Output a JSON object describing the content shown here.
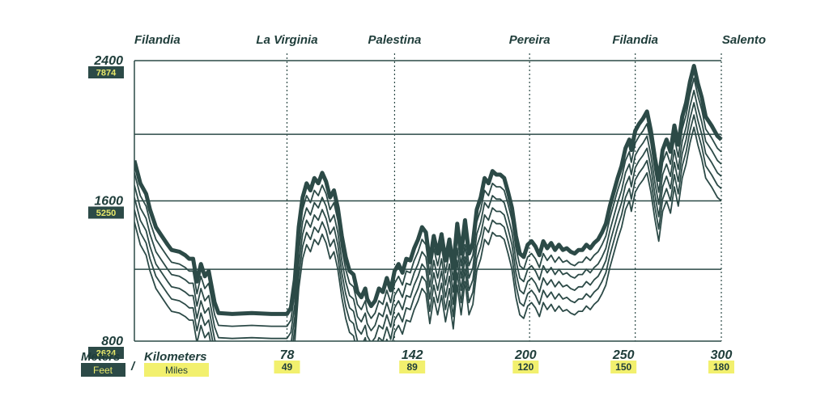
{
  "colors": {
    "ink": "#2c4a47",
    "dark_box": "#2c4a47",
    "yellow_box": "#f2f06e",
    "yellow_text": "#e8e86a",
    "grid": "#2c4a47"
  },
  "units": {
    "meters": "Meters",
    "feet": "Feet",
    "separator": "/",
    "kilometers": "Kilometers",
    "miles": "Miles"
  },
  "chart_data": {
    "type": "line",
    "title": "",
    "xlabel": "Kilometers",
    "ylabel": "Meters",
    "xlim": [
      0,
      300
    ],
    "ylim": [
      800,
      2400
    ],
    "grid": true,
    "y_ticks": [
      {
        "m": "2400",
        "ft": "7874",
        "value": 2400
      },
      {
        "m": "1600",
        "ft": "5250",
        "value": 1600
      },
      {
        "m": "800",
        "ft": "2624",
        "value": 800
      }
    ],
    "extra_gridlines": [
      1980,
      1210
    ],
    "x_ticks": [
      {
        "km": "78",
        "mi": "49",
        "value": 78
      },
      {
        "km": "142",
        "mi": "89",
        "value": 142
      },
      {
        "km": "200",
        "mi": "120",
        "value": 200
      },
      {
        "km": "250",
        "mi": "150",
        "value": 250
      },
      {
        "km": "300",
        "mi": "180",
        "value": 300
      }
    ],
    "towns": [
      {
        "name": "Filandia",
        "km": 0
      },
      {
        "name": "La Virginia",
        "km": 78
      },
      {
        "name": "Palestina",
        "km": 133
      },
      {
        "name": "Pereira",
        "km": 202
      },
      {
        "name": "Filandia",
        "km": 256
      },
      {
        "name": "Salento",
        "km": 300
      }
    ],
    "layers": 6,
    "layer_offset_m": 70,
    "profile": [
      [
        0,
        1830
      ],
      [
        3,
        1700
      ],
      [
        6,
        1640
      ],
      [
        8,
        1550
      ],
      [
        11,
        1450
      ],
      [
        14,
        1400
      ],
      [
        17,
        1350
      ],
      [
        19,
        1320
      ],
      [
        23,
        1310
      ],
      [
        26,
        1290
      ],
      [
        28,
        1270
      ],
      [
        30,
        1270
      ],
      [
        32,
        1140
      ],
      [
        34,
        1240
      ],
      [
        36,
        1170
      ],
      [
        38,
        1200
      ],
      [
        41,
        1020
      ],
      [
        43,
        960
      ],
      [
        50,
        955
      ],
      [
        60,
        960
      ],
      [
        70,
        955
      ],
      [
        78,
        955
      ],
      [
        80,
        990
      ],
      [
        82,
        1150
      ],
      [
        84,
        1450
      ],
      [
        86,
        1620
      ],
      [
        88,
        1700
      ],
      [
        90,
        1660
      ],
      [
        92,
        1730
      ],
      [
        94,
        1700
      ],
      [
        96,
        1760
      ],
      [
        98,
        1710
      ],
      [
        100,
        1620
      ],
      [
        102,
        1660
      ],
      [
        104,
        1560
      ],
      [
        106,
        1400
      ],
      [
        108,
        1280
      ],
      [
        110,
        1200
      ],
      [
        112,
        1180
      ],
      [
        114,
        1080
      ],
      [
        116,
        1050
      ],
      [
        118,
        1100
      ],
      [
        119,
        1040
      ],
      [
        121,
        1000
      ],
      [
        123,
        1030
      ],
      [
        125,
        1100
      ],
      [
        127,
        1080
      ],
      [
        129,
        1160
      ],
      [
        131,
        1090
      ],
      [
        133,
        1200
      ],
      [
        135,
        1240
      ],
      [
        137,
        1190
      ],
      [
        139,
        1270
      ],
      [
        141,
        1260
      ],
      [
        143,
        1330
      ],
      [
        145,
        1380
      ],
      [
        147,
        1450
      ],
      [
        149,
        1420
      ],
      [
        151,
        1250
      ],
      [
        153,
        1400
      ],
      [
        155,
        1300
      ],
      [
        157,
        1410
      ],
      [
        159,
        1260
      ],
      [
        161,
        1380
      ],
      [
        163,
        1220
      ],
      [
        165,
        1470
      ],
      [
        167,
        1300
      ],
      [
        169,
        1490
      ],
      [
        171,
        1300
      ],
      [
        173,
        1360
      ],
      [
        175,
        1550
      ],
      [
        177,
        1620
      ],
      [
        179,
        1730
      ],
      [
        181,
        1700
      ],
      [
        183,
        1770
      ],
      [
        185,
        1750
      ],
      [
        187,
        1750
      ],
      [
        189,
        1730
      ],
      [
        191,
        1650
      ],
      [
        193,
        1560
      ],
      [
        195,
        1400
      ],
      [
        197,
        1300
      ],
      [
        199,
        1280
      ],
      [
        201,
        1350
      ],
      [
        203,
        1370
      ],
      [
        205,
        1340
      ],
      [
        207,
        1290
      ],
      [
        209,
        1370
      ],
      [
        211,
        1330
      ],
      [
        213,
        1360
      ],
      [
        215,
        1320
      ],
      [
        217,
        1350
      ],
      [
        219,
        1320
      ],
      [
        221,
        1330
      ],
      [
        223,
        1310
      ],
      [
        225,
        1300
      ],
      [
        227,
        1320
      ],
      [
        229,
        1320
      ],
      [
        231,
        1350
      ],
      [
        233,
        1330
      ],
      [
        235,
        1360
      ],
      [
        237,
        1380
      ],
      [
        239,
        1420
      ],
      [
        241,
        1470
      ],
      [
        243,
        1570
      ],
      [
        245,
        1650
      ],
      [
        247,
        1730
      ],
      [
        249,
        1800
      ],
      [
        251,
        1900
      ],
      [
        253,
        1950
      ],
      [
        254,
        1890
      ],
      [
        256,
        2000
      ],
      [
        258,
        2040
      ],
      [
        260,
        2070
      ],
      [
        262,
        2110
      ],
      [
        264,
        2000
      ],
      [
        266,
        1850
      ],
      [
        268,
        1720
      ],
      [
        270,
        1890
      ],
      [
        272,
        1950
      ],
      [
        274,
        1880
      ],
      [
        276,
        2030
      ],
      [
        278,
        1920
      ],
      [
        280,
        2080
      ],
      [
        282,
        2160
      ],
      [
        284,
        2280
      ],
      [
        286,
        2370
      ],
      [
        288,
        2270
      ],
      [
        290,
        2190
      ],
      [
        292,
        2080
      ],
      [
        295,
        2030
      ],
      [
        298,
        1970
      ],
      [
        300,
        1950
      ]
    ]
  }
}
